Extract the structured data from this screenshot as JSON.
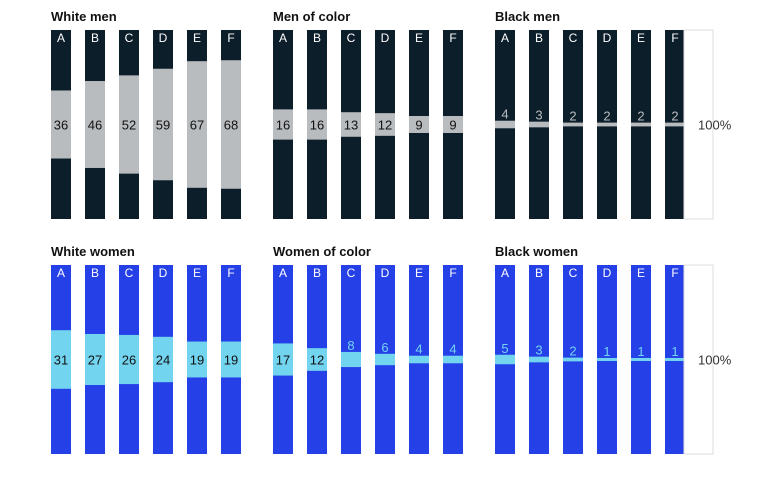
{
  "chart_data": [
    {
      "type": "bar",
      "title": "White men",
      "categories": [
        "A",
        "B",
        "C",
        "D",
        "E",
        "F"
      ],
      "values": [
        36,
        46,
        52,
        59,
        67,
        68
      ],
      "ylim": [
        0,
        100
      ],
      "colors": {
        "bar": "#0d1e2b",
        "highlight": "#b9bcbf",
        "label": "#111111",
        "letter": "#ffffff"
      }
    },
    {
      "type": "bar",
      "title": "Men of color",
      "categories": [
        "A",
        "B",
        "C",
        "D",
        "E",
        "F"
      ],
      "values": [
        16,
        16,
        13,
        12,
        9,
        9
      ],
      "ylim": [
        0,
        100
      ],
      "colors": {
        "bar": "#0d1e2b",
        "highlight": "#b9bcbf",
        "label": "#111111",
        "letter": "#ffffff"
      }
    },
    {
      "type": "bar",
      "title": "Black men",
      "categories": [
        "A",
        "B",
        "C",
        "D",
        "E",
        "F"
      ],
      "values": [
        4,
        3,
        2,
        2,
        2,
        2
      ],
      "ylim": [
        0,
        100
      ],
      "reference_label": "100%",
      "colors": {
        "bar": "#0d1e2b",
        "highlight": "#b9bcbf",
        "label": "#111111",
        "letter": "#ffffff"
      }
    },
    {
      "type": "bar",
      "title": "White women",
      "categories": [
        "A",
        "B",
        "C",
        "D",
        "E",
        "F"
      ],
      "values": [
        31,
        27,
        26,
        24,
        19,
        19
      ],
      "ylim": [
        0,
        100
      ],
      "colors": {
        "bar": "#2640e8",
        "highlight": "#72d4ef",
        "label": "#111111",
        "letter": "#ffffff"
      }
    },
    {
      "type": "bar",
      "title": "Women of color",
      "categories": [
        "A",
        "B",
        "C",
        "D",
        "E",
        "F"
      ],
      "values": [
        17,
        12,
        8,
        6,
        4,
        4
      ],
      "ylim": [
        0,
        100
      ],
      "colors": {
        "bar": "#2640e8",
        "highlight": "#72d4ef",
        "label": "#111111",
        "letter": "#ffffff"
      }
    },
    {
      "type": "bar",
      "title": "Black women",
      "categories": [
        "A",
        "B",
        "C",
        "D",
        "E",
        "F"
      ],
      "values": [
        5,
        3,
        2,
        1,
        1,
        1
      ],
      "ylim": [
        0,
        100
      ],
      "reference_label": "100%",
      "colors": {
        "bar": "#2640e8",
        "highlight": "#72d4ef",
        "label": "#111111",
        "letter": "#ffffff"
      }
    }
  ]
}
